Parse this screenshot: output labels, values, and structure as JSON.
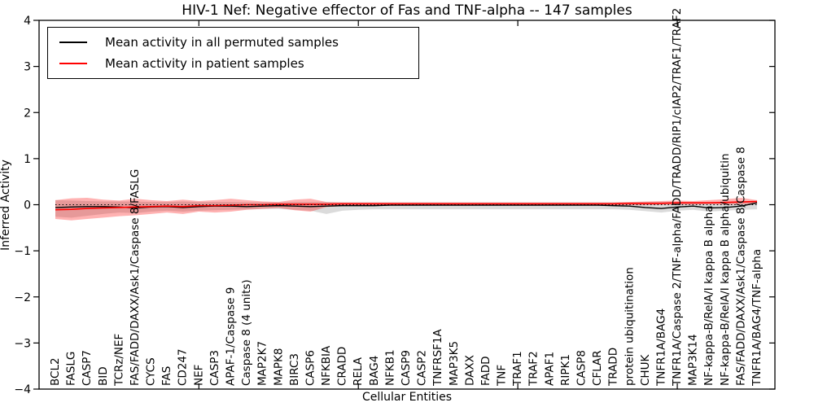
{
  "chart_data": {
    "type": "line",
    "title": "HIV-1 Nef: Negative effector of Fas and TNF-alpha -- 147 samples",
    "xlabel": "Cellular Entities",
    "ylabel": "Inferred Activity",
    "ylim": [
      -4,
      4
    ],
    "yticks": [
      4,
      3,
      2,
      1,
      0,
      -1,
      -2,
      -3,
      -4
    ],
    "ytick_labels": [
      "4",
      "3",
      "2",
      "1",
      "0",
      "−1",
      "−2",
      "−3",
      "−4"
    ],
    "xtick_major_indices": [
      9,
      19,
      29,
      39
    ],
    "grid": false,
    "legend_position": "upper left",
    "zero_line": true,
    "categories": [
      "BCL2",
      "FASLG",
      "CASP7",
      "BID",
      "TCRz/NEF",
      "FAS/FADD/DAXX/Ask1/Caspase 8/FASLG",
      "CYCS",
      "FAS",
      "CD247",
      "NEF",
      "CASP3",
      "APAF-1/Caspase 9",
      "Caspase 8 (4 units)",
      "MAP2K7",
      "MAPK8",
      "BIRC3",
      "CASP6",
      "NFKBIA",
      "CRADD",
      "RELA",
      "BAG4",
      "NFKB1",
      "CASP9",
      "CASP2",
      "TNFRSF1A",
      "MAP3K5",
      "DAXX",
      "FADD",
      "TNF",
      "TRAF1",
      "TRAF2",
      "APAF1",
      "RIPK1",
      "CASP8",
      "CFLAR",
      "TRADD",
      "protein ubiquitination",
      "CHUK",
      "TNFR1A/BAG4",
      "TNFR1A/Caspase 2/TNF-alpha/FADD/TRADD/RIP1/cIAP2/TRAF1/TRAF2",
      "MAP3K14",
      "NF-kappa-B/RelA/I kappa B alpha",
      "NF-kappa-B/RelA/I kappa B alpha/ubiquitin",
      "FAS/FADD/DAXX/Ask1/Caspase 8/Caspase 8",
      "TNFR1A/BAG4/TNF-alpha"
    ],
    "series": [
      {
        "name": "Mean activity in all permuted samples",
        "color": "#000000",
        "band_color": "rgba(0,0,0,0.14)",
        "values": [
          -0.06,
          -0.05,
          -0.04,
          -0.04,
          -0.05,
          -0.07,
          -0.05,
          -0.04,
          -0.06,
          -0.04,
          -0.03,
          -0.03,
          -0.04,
          -0.03,
          -0.02,
          -0.03,
          -0.04,
          -0.03,
          -0.02,
          -0.02,
          -0.02,
          -0.01,
          -0.01,
          -0.01,
          -0.01,
          -0.01,
          -0.01,
          -0.01,
          -0.01,
          -0.01,
          -0.01,
          -0.01,
          -0.01,
          -0.01,
          -0.01,
          -0.02,
          -0.03,
          -0.06,
          -0.08,
          -0.05,
          -0.03,
          -0.07,
          -0.06,
          -0.03,
          0.04
        ],
        "band_upper": [
          0.1,
          0.09,
          0.08,
          0.07,
          0.07,
          0.07,
          0.06,
          0.06,
          0.07,
          0.06,
          0.06,
          0.06,
          0.05,
          0.05,
          0.05,
          0.06,
          0.06,
          0.06,
          0.05,
          0.05,
          0.05,
          0.05,
          0.05,
          0.05,
          0.05,
          0.05,
          0.05,
          0.05,
          0.05,
          0.05,
          0.05,
          0.05,
          0.05,
          0.05,
          0.05,
          0.05,
          0.05,
          0.06,
          0.06,
          0.06,
          0.05,
          0.05,
          0.06,
          0.07,
          0.09
        ],
        "band_lower": [
          -0.26,
          -0.28,
          -0.24,
          -0.2,
          -0.17,
          -0.18,
          -0.15,
          -0.13,
          -0.15,
          -0.13,
          -0.12,
          -0.11,
          -0.1,
          -0.09,
          -0.09,
          -0.11,
          -0.13,
          -0.2,
          -0.13,
          -0.11,
          -0.1,
          -0.1,
          -0.1,
          -0.1,
          -0.1,
          -0.1,
          -0.1,
          -0.1,
          -0.1,
          -0.1,
          -0.1,
          -0.1,
          -0.1,
          -0.1,
          -0.1,
          -0.1,
          -0.11,
          -0.14,
          -0.17,
          -0.13,
          -0.11,
          -0.15,
          -0.13,
          -0.11,
          -0.1
        ]
      },
      {
        "name": "Mean activity in patient samples",
        "color": "#ff0000",
        "band_color": "rgba(255,0,0,0.30)",
        "values": [
          -0.11,
          -0.1,
          -0.08,
          -0.07,
          -0.06,
          -0.05,
          -0.04,
          -0.03,
          -0.04,
          -0.02,
          -0.02,
          -0.01,
          0.0,
          0.0,
          0.01,
          0.01,
          0.01,
          0.01,
          0.02,
          0.02,
          0.02,
          0.02,
          0.02,
          0.02,
          0.02,
          0.02,
          0.02,
          0.02,
          0.02,
          0.02,
          0.02,
          0.02,
          0.02,
          0.02,
          0.02,
          0.02,
          0.03,
          0.03,
          0.03,
          0.04,
          0.04,
          0.04,
          0.05,
          0.06,
          0.07
        ],
        "band_upper": [
          0.1,
          0.14,
          0.15,
          0.11,
          0.09,
          0.13,
          0.1,
          0.08,
          0.11,
          0.08,
          0.1,
          0.13,
          0.1,
          0.07,
          0.06,
          0.11,
          0.13,
          0.06,
          0.05,
          0.05,
          0.05,
          0.05,
          0.05,
          0.05,
          0.05,
          0.05,
          0.05,
          0.05,
          0.05,
          0.05,
          0.05,
          0.05,
          0.05,
          0.05,
          0.05,
          0.05,
          0.06,
          0.07,
          0.08,
          0.09,
          0.08,
          0.1,
          0.12,
          0.15,
          0.1
        ],
        "band_lower": [
          -0.31,
          -0.34,
          -0.31,
          -0.28,
          -0.25,
          -0.23,
          -0.2,
          -0.17,
          -0.2,
          -0.15,
          -0.17,
          -0.15,
          -0.11,
          -0.09,
          -0.07,
          -0.12,
          -0.15,
          -0.05,
          -0.03,
          -0.02,
          -0.02,
          -0.02,
          -0.02,
          -0.02,
          -0.02,
          -0.02,
          -0.02,
          -0.02,
          -0.02,
          -0.02,
          -0.02,
          -0.02,
          -0.02,
          -0.02,
          -0.02,
          -0.01,
          -0.01,
          -0.01,
          0.0,
          0.0,
          0.0,
          0.01,
          0.0,
          0.01,
          0.02
        ]
      }
    ]
  }
}
